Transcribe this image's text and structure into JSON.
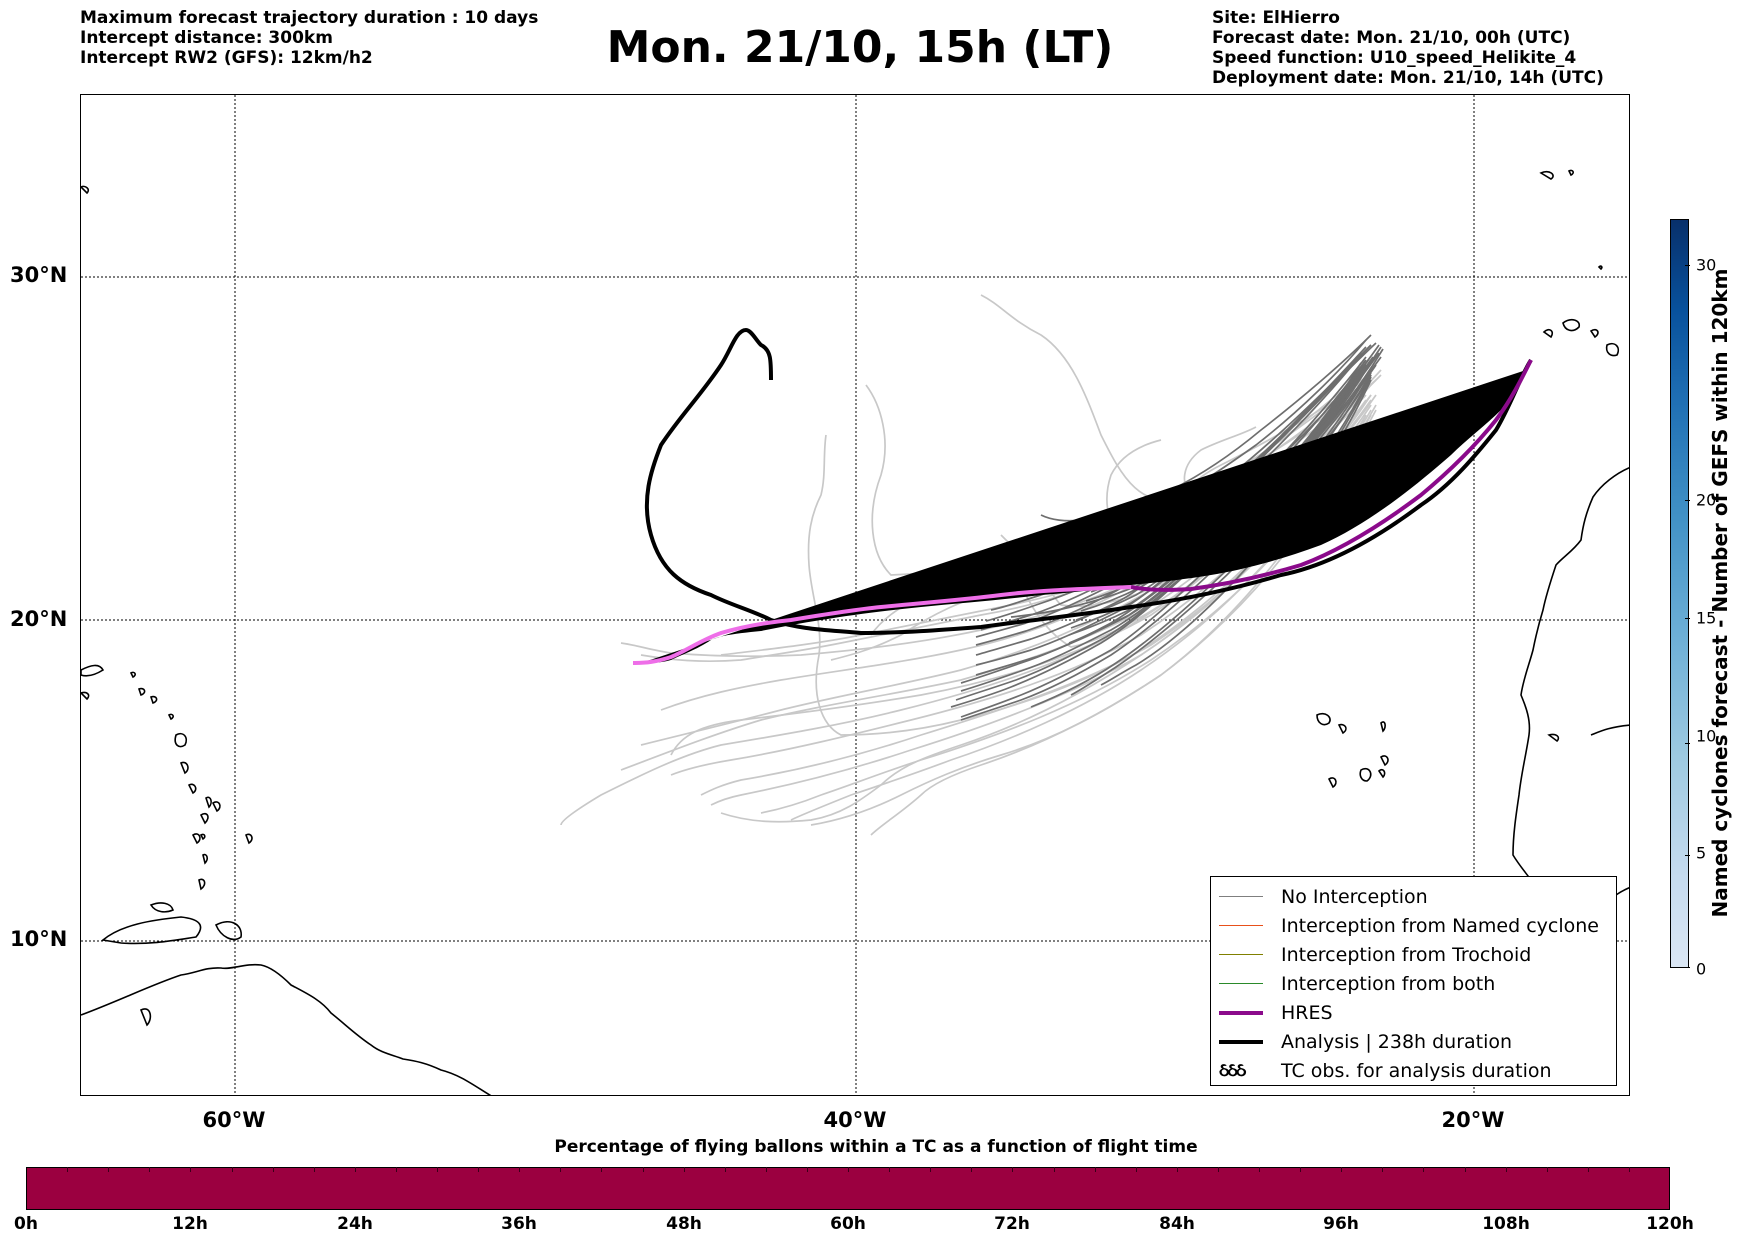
{
  "header": {
    "left_lines": [
      "Maximum forecast trajectory duration : 10 days",
      "Intercept distance: 300km",
      "Intercept RW2 (GFS):  12km/h2"
    ],
    "title": "Mon. 21/10, 15h (LT)",
    "right_lines": [
      "Site: ElHierro",
      "Forecast date: Mon. 21/10, 00h (UTC)",
      "Speed function: U10_speed_Helikite_4",
      "Deployment date: Mon. 21/10, 14h (UTC)"
    ]
  },
  "map": {
    "lat_labels": [
      "30°N",
      "20°N",
      "10°N"
    ],
    "lon_labels": [
      "60°W",
      "40°W",
      "20°W"
    ]
  },
  "legend": {
    "items": [
      {
        "label": "No Interception",
        "color": "#7f7f7f",
        "style": "thin"
      },
      {
        "label": "Interception from Named cyclone",
        "color": "#e8501a",
        "style": "thin"
      },
      {
        "label": "Interception from Trochoid",
        "color": "#808000",
        "style": "thin"
      },
      {
        "label": "Interception from both",
        "color": "#2a8a2a",
        "style": "thin"
      },
      {
        "label": "HRES",
        "color": "#8b0a8b",
        "style": "thick"
      },
      {
        "label": "Analysis | 238h duration",
        "color": "#000000",
        "style": "thick"
      },
      {
        "label": "TC obs. for analysis duration",
        "color": "#000000",
        "style": "symbol",
        "symbol": "ઠઠઠ"
      }
    ]
  },
  "colorbar_right": {
    "title": "Named cyclones forecast - Number of GEFS within 120km",
    "ticks": [
      "0",
      "5",
      "10",
      "15",
      "20",
      "30"
    ],
    "colors": [
      "#dbe7f4",
      "#c6dbef",
      "#9ecae1",
      "#6baed6",
      "#4292c6",
      "#2171b5",
      "#08519c",
      "#08306b"
    ]
  },
  "bottom_bar": {
    "title": "Percentage of flying ballons within a TC as a function of flight time",
    "ticks": [
      "0h",
      "12h",
      "24h",
      "36h",
      "48h",
      "60h",
      "72h",
      "84h",
      "96h",
      "108h",
      "120h"
    ],
    "color": "#9b0040"
  }
}
